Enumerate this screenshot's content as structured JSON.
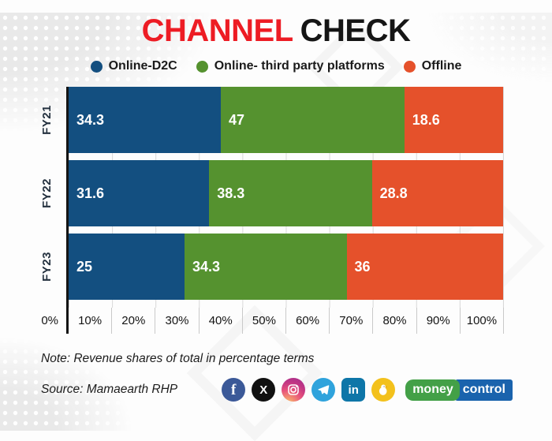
{
  "title": {
    "part1": "CHANNEL",
    "part2": "CHECK"
  },
  "legend": [
    {
      "label": "Online-D2C",
      "color": "#134f80"
    },
    {
      "label": "Online- third party platforms",
      "color": "#55922f"
    },
    {
      "label": "Offline",
      "color": "#e5512b"
    }
  ],
  "chart_data": {
    "type": "bar",
    "stacked": true,
    "normalized": true,
    "orientation": "horizontal",
    "title": "CHANNEL CHECK",
    "categories": [
      "FY21",
      "FY22",
      "FY23"
    ],
    "series": [
      {
        "name": "Online-D2C",
        "color": "#134f80",
        "values": [
          34.3,
          31.6,
          25
        ]
      },
      {
        "name": "Online- third party platforms",
        "color": "#55922f",
        "values": [
          47,
          38.3,
          34.3
        ]
      },
      {
        "name": "Offline",
        "color": "#e5512b",
        "values": [
          18.6,
          28.8,
          36
        ]
      }
    ],
    "x_ticks": [
      "0%",
      "10%",
      "20%",
      "30%",
      "40%",
      "50%",
      "60%",
      "70%",
      "80%",
      "90%",
      "100%"
    ],
    "xlim": [
      0,
      100
    ],
    "grid": "vertical",
    "legend_position": "top"
  },
  "note": "Note: Revenue shares of total in percentage terms",
  "source": "Source: Mamaearth RHP",
  "footer": {
    "social_icons": [
      "facebook-icon",
      "x-icon",
      "instagram-icon",
      "telegram-icon",
      "linkedin-icon",
      "koo-icon"
    ],
    "facebook_glyph": "f",
    "x_glyph": "X",
    "linkedin_glyph": "in",
    "logo": {
      "part1": "money",
      "part2": "control",
      "green": "#43a047",
      "blue": "#1a63ad"
    }
  },
  "colors": {
    "title_accent": "#ed1c24",
    "title_dark": "#151515",
    "axis": "#141414"
  }
}
